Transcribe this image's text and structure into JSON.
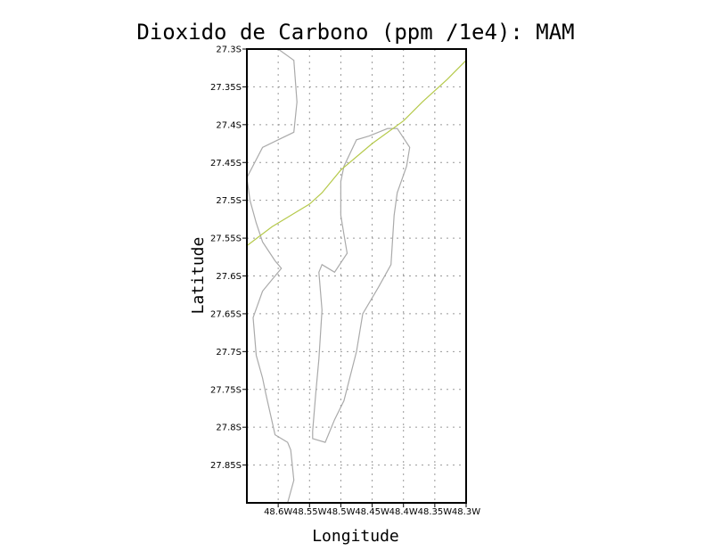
{
  "chart_data": {
    "type": "line",
    "title": "Dioxido de Carbono (ppm /1e4): MAM",
    "xlabel": "Longitude",
    "ylabel": "Latitude",
    "xlim": [
      -48.65,
      -48.3
    ],
    "ylim": [
      -27.9,
      -27.3
    ],
    "x_ticks": [
      {
        "value": -48.6,
        "label": "48.6W"
      },
      {
        "value": -48.55,
        "label": "48.55W"
      },
      {
        "value": -48.5,
        "label": "48.5W"
      },
      {
        "value": -48.45,
        "label": "48.45W"
      },
      {
        "value": -48.4,
        "label": "48.4W"
      },
      {
        "value": -48.35,
        "label": "48.35W"
      },
      {
        "value": -48.3,
        "label": "48.3W"
      }
    ],
    "y_ticks": [
      {
        "value": -27.3,
        "label": "27.3S"
      },
      {
        "value": -27.35,
        "label": "27.35S"
      },
      {
        "value": -27.4,
        "label": "27.4S"
      },
      {
        "value": -27.45,
        "label": "27.45S"
      },
      {
        "value": -27.5,
        "label": "27.5S"
      },
      {
        "value": -27.55,
        "label": "27.55S"
      },
      {
        "value": -27.6,
        "label": "27.6S"
      },
      {
        "value": -27.65,
        "label": "27.65S"
      },
      {
        "value": -27.7,
        "label": "27.7S"
      },
      {
        "value": -27.75,
        "label": "27.75S"
      },
      {
        "value": -27.8,
        "label": "27.8S"
      },
      {
        "value": -27.85,
        "label": "27.85S"
      }
    ],
    "grid": true,
    "colors": {
      "contour": "#b5c94a",
      "coastline": "#aaaaaa",
      "grid": "#999999",
      "frame": "#000000"
    },
    "contour_line": {
      "points": [
        [
          -48.65,
          -27.56
        ],
        [
          -48.61,
          -27.535
        ],
        [
          -48.57,
          -27.515
        ],
        [
          -48.55,
          -27.505
        ],
        [
          -48.53,
          -27.49
        ],
        [
          -48.5,
          -27.46
        ],
        [
          -48.45,
          -27.425
        ],
        [
          -48.4,
          -27.395
        ],
        [
          -48.37,
          -27.37
        ],
        [
          -48.33,
          -27.34
        ],
        [
          -48.3,
          -27.315
        ]
      ]
    },
    "coastlines": [
      {
        "points": [
          [
            -48.6,
            -27.3
          ],
          [
            -48.575,
            -27.315
          ],
          [
            -48.57,
            -27.37
          ],
          [
            -48.575,
            -27.41
          ],
          [
            -48.6,
            -27.42
          ],
          [
            -48.625,
            -27.43
          ],
          [
            -48.65,
            -27.47
          ],
          [
            -48.645,
            -27.5
          ],
          [
            -48.635,
            -27.53
          ],
          [
            -48.625,
            -27.555
          ],
          [
            -48.605,
            -27.58
          ],
          [
            -48.595,
            -27.59
          ],
          [
            -48.61,
            -27.605
          ],
          [
            -48.625,
            -27.62
          ],
          [
            -48.64,
            -27.655
          ],
          [
            -48.635,
            -27.705
          ],
          [
            -48.625,
            -27.735
          ],
          [
            -48.62,
            -27.755
          ],
          [
            -48.605,
            -27.81
          ],
          [
            -48.585,
            -27.82
          ],
          [
            -48.58,
            -27.83
          ],
          [
            -48.575,
            -27.87
          ],
          [
            -48.585,
            -27.9
          ]
        ]
      },
      {
        "points": [
          [
            -48.425,
            -27.405
          ],
          [
            -48.455,
            -27.415
          ],
          [
            -48.475,
            -27.42
          ],
          [
            -48.495,
            -27.455
          ],
          [
            -48.5,
            -27.475
          ],
          [
            -48.5,
            -27.52
          ],
          [
            -48.495,
            -27.545
          ],
          [
            -48.49,
            -27.57
          ],
          [
            -48.51,
            -27.595
          ],
          [
            -48.53,
            -27.585
          ],
          [
            -48.535,
            -27.595
          ],
          [
            -48.53,
            -27.645
          ],
          [
            -48.535,
            -27.71
          ],
          [
            -48.54,
            -27.755
          ],
          [
            -48.545,
            -27.805
          ],
          [
            -48.545,
            -27.815
          ],
          [
            -48.525,
            -27.82
          ],
          [
            -48.51,
            -27.79
          ],
          [
            -48.495,
            -27.765
          ],
          [
            -48.475,
            -27.7
          ],
          [
            -48.465,
            -27.65
          ],
          [
            -48.44,
            -27.615
          ],
          [
            -48.42,
            -27.585
          ],
          [
            -48.415,
            -27.52
          ],
          [
            -48.41,
            -27.49
          ],
          [
            -48.395,
            -27.455
          ],
          [
            -48.39,
            -27.43
          ],
          [
            -48.41,
            -27.405
          ],
          [
            -48.425,
            -27.405
          ]
        ]
      }
    ]
  }
}
